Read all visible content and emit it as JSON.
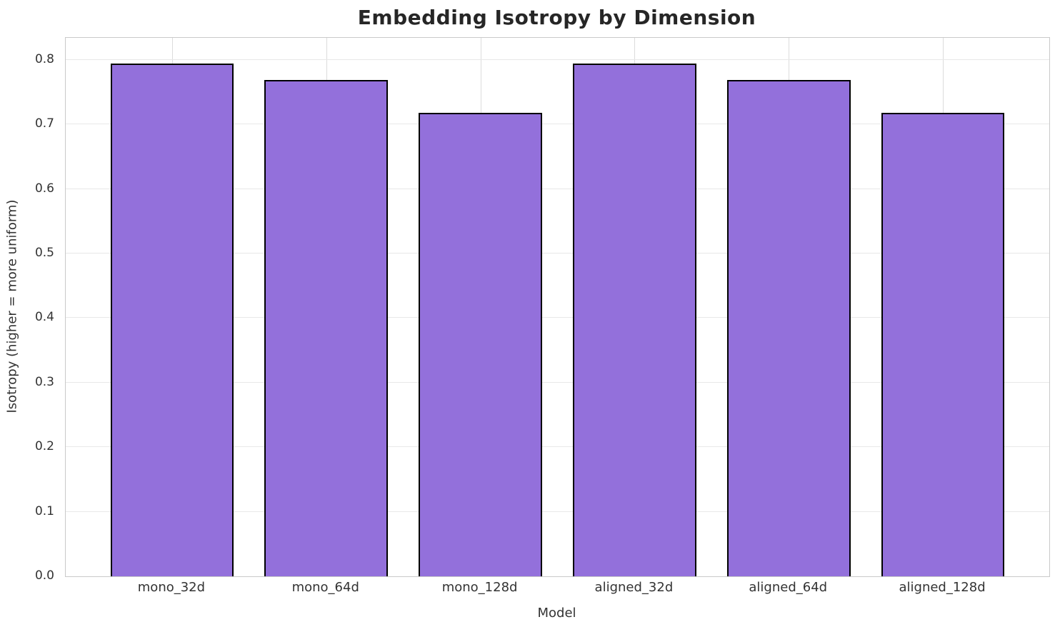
{
  "figure": {
    "background": "#ffffff",
    "title_color": "#262626",
    "tick_label_color": "#333333",
    "axis_label_color": "#333333",
    "spine_color": "#c9c9c9",
    "h_grid_color": "#e8e8e8",
    "v_grid_color": "#dcdcdc"
  },
  "chart_data": {
    "type": "bar",
    "title": "Embedding Isotropy by Dimension",
    "xlabel": "Model",
    "ylabel": "Isotropy (higher = more uniform)",
    "categories": [
      "mono_32d",
      "mono_64d",
      "mono_128d",
      "aligned_32d",
      "aligned_64d",
      "aligned_128d"
    ],
    "values": [
      0.794,
      0.769,
      0.718,
      0.794,
      0.769,
      0.718
    ],
    "ylim": [
      0,
      0.834
    ],
    "yticks": [
      0.0,
      0.1,
      0.2,
      0.3,
      0.4,
      0.5,
      0.6,
      0.7,
      0.8
    ],
    "ytick_labels": [
      "0.0",
      "0.1",
      "0.2",
      "0.3",
      "0.4",
      "0.5",
      "0.6",
      "0.7",
      "0.8"
    ],
    "x_range": [
      -0.69,
      5.69
    ],
    "bar_width": 0.8,
    "grid": true,
    "legend_position": "none",
    "bar_color": "#9370db",
    "bar_edge_color": "#000000"
  }
}
